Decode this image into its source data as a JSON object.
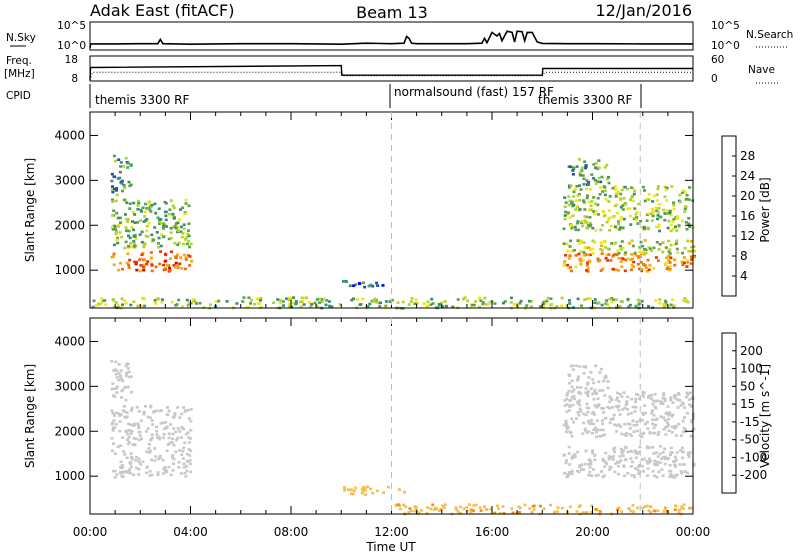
{
  "header": {
    "station": "Adak East (fitACF)",
    "beam": "Beam 13",
    "date": "12/Jan/2016"
  },
  "colors": {
    "background": "#ffffff",
    "axis": "#000000",
    "scatter": "#c8c8c8",
    "power_scale": [
      "#0000ff",
      "#2050b0",
      "#3c8c6e",
      "#5aa050",
      "#b4d22d",
      "#f0e614",
      "#f5aa0a",
      "#f06e05",
      "#e63200",
      "#d20000"
    ],
    "velocity_scale": [
      "#d20000",
      "#f03c00",
      "#f58c0a",
      "#f5be50",
      "#c8c8c8",
      "#c8c8c8",
      "#7ad250",
      "#3ca050",
      "#3c6eb4",
      "#2838b4"
    ]
  },
  "panels": {
    "nsky": {
      "label": "N.Sky",
      "right_label": "N.Search",
      "left_ticks": [
        "10^5",
        "10^0"
      ],
      "right_ticks": [
        "10^5",
        "10^0"
      ]
    },
    "freq": {
      "label_line1": "Freq.",
      "label_line2": "[MHz]",
      "right_label": "Nave",
      "left_ticks": [
        "18",
        "8"
      ],
      "right_ticks": [
        "60",
        "0"
      ]
    },
    "cpid": {
      "label": "CPID",
      "segments": [
        {
          "text": "themis 3300 RF",
          "start_hour": 0
        },
        {
          "text": "normalsound (fast) 157 RF",
          "start_hour": 12
        },
        {
          "text": "themis 3300 RF",
          "start_hour": 18
        }
      ]
    }
  },
  "chart_data": [
    {
      "type": "line",
      "name": "nsky",
      "series": [
        {
          "style": "solid",
          "x": [
            0,
            0.02,
            1,
            2,
            2.7,
            2.8,
            2.9,
            4,
            6,
            8,
            10,
            11,
            12,
            12.5,
            12.6,
            12.7,
            12.8,
            13,
            14,
            15,
            15.6,
            15.7,
            15.8,
            16,
            16.2,
            16.3,
            16.4,
            16.6,
            16.8,
            16.9,
            17,
            17.2,
            17.3,
            17.4,
            17.6,
            17.8,
            18,
            19,
            20,
            22,
            24
          ],
          "y": [
            0,
            1.7,
            1.7,
            1.8,
            1.8,
            3.6,
            1.8,
            1.6,
            1.8,
            1.8,
            1.6,
            2.0,
            1.8,
            2.0,
            4.8,
            4.0,
            2.0,
            1.8,
            1.8,
            1.8,
            2.0,
            4.0,
            2.2,
            6.5,
            5.0,
            6.0,
            3.0,
            7.0,
            6.5,
            2.5,
            7.0,
            6.8,
            3.0,
            6.5,
            6.5,
            2.5,
            1.9,
            1.8,
            1.8,
            1.7,
            1.7
          ]
        }
      ],
      "ylim": [
        0,
        10
      ]
    },
    {
      "type": "line",
      "name": "freq_nave",
      "series": [
        {
          "name": "Freq.",
          "style": "solid",
          "x": [
            0,
            0.02,
            10,
            10.02,
            18,
            18.02,
            24
          ],
          "y": [
            8,
            13.2,
            14.0,
            10.0,
            10.0,
            12.8,
            12.8
          ]
        },
        {
          "name": "Nave",
          "style": "dotted",
          "x": [
            0,
            0.1,
            10,
            10.1,
            18,
            18.1,
            24
          ],
          "y": [
            8,
            11.2,
            11.2,
            9.8,
            9.8,
            11.2,
            11.2
          ]
        }
      ],
      "ylim": [
        8,
        18
      ]
    },
    {
      "type": "heatmap",
      "name": "power",
      "colorbar_label": "Power [dB]",
      "colorbar_ticks": [
        "4",
        "8",
        "12",
        "16",
        "20",
        "24",
        "28"
      ],
      "ylabel": "Slant Range [km]",
      "yticks": [
        "1000",
        "2000",
        "3000",
        "4000"
      ],
      "ylim": [
        180,
        4500
      ],
      "xlim": [
        0,
        24
      ],
      "regions": [
        {
          "x": [
            0.8,
            4.0
          ],
          "y": [
            1000,
            1450
          ],
          "value": 25
        },
        {
          "x": [
            0.8,
            4.0
          ],
          "y": [
            1500,
            2600
          ],
          "value": 13
        },
        {
          "x": [
            0.8,
            1.6
          ],
          "y": [
            2700,
            3600
          ],
          "value": 10
        },
        {
          "x": [
            10.0,
            11.8
          ],
          "y": [
            650,
            800
          ],
          "value": 8
        },
        {
          "x": [
            0.0,
            24.0
          ],
          "y": [
            180,
            420
          ],
          "value": 14
        },
        {
          "x": [
            18.8,
            24.0
          ],
          "y": [
            1000,
            1400
          ],
          "value": 24
        },
        {
          "x": [
            18.8,
            24.0
          ],
          "y": [
            1400,
            1700
          ],
          "value": 16
        },
        {
          "x": [
            18.8,
            24.0
          ],
          "y": [
            1900,
            2900
          ],
          "value": 15
        },
        {
          "x": [
            19.0,
            20.6
          ],
          "y": [
            2900,
            3500
          ],
          "value": 12
        }
      ]
    },
    {
      "type": "heatmap",
      "name": "velocity",
      "colorbar_label": "Velocity [m s^-1]",
      "colorbar_ticks": [
        "-200",
        "-100",
        "-50",
        "-15",
        "15",
        "50",
        "100",
        "200"
      ],
      "xlabel": "Time UT",
      "ylabel": "Slant Range [km]",
      "yticks": [
        "1000",
        "2000",
        "3000",
        "4000"
      ],
      "xticks": [
        "00:00",
        "04:00",
        "08:00",
        "12:00",
        "16:00",
        "20:00",
        "00:00"
      ],
      "ylim": [
        180,
        4500
      ],
      "xlim": [
        0,
        24
      ],
      "regions": [
        {
          "x": [
            0.8,
            4.0
          ],
          "y": [
            1000,
            2600
          ],
          "value": 0
        },
        {
          "x": [
            0.8,
            1.6
          ],
          "y": [
            2700,
            3600
          ],
          "value": 0
        },
        {
          "x": [
            10.0,
            12.5
          ],
          "y": [
            600,
            800
          ],
          "value": -30
        },
        {
          "x": [
            12.0,
            24.0
          ],
          "y": [
            180,
            400
          ],
          "value": -40
        },
        {
          "x": [
            18.8,
            24.0
          ],
          "y": [
            1000,
            1700
          ],
          "value": 0
        },
        {
          "x": [
            18.8,
            24.0
          ],
          "y": [
            1900,
            2900
          ],
          "value": 0
        },
        {
          "x": [
            19.0,
            20.6
          ],
          "y": [
            2900,
            3500
          ],
          "value": 0
        }
      ]
    }
  ]
}
